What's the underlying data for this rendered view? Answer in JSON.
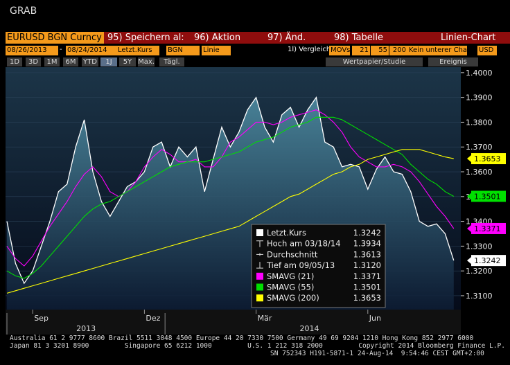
{
  "window": {
    "title": "GRAB"
  },
  "toolbar": {
    "security": "EURUSD BGN Curncy",
    "menu": [
      "95) Speichern al:",
      "96) Aktion",
      "97) Änd.",
      "98) Tabelle"
    ],
    "chart_kind": "Linien-Chart",
    "start_date": "08/26/2013",
    "date_sep": "-",
    "end_date": "08/24/2014",
    "field": "Letzt.Kurs",
    "source": "BGN",
    "style": "Linie",
    "compare": "1l) Vergleich",
    "movs": "MOVs",
    "periods": [
      "21",
      "55",
      "200"
    ],
    "lower": "Kein unterer Cha",
    "currency": "USD",
    "ranges": [
      "1D",
      "3D",
      "1M",
      "6M",
      "YTD",
      "1J",
      "5Y",
      "Max."
    ],
    "frequency": "Tägl.",
    "security_study": "Wertpapier/Studie",
    "events": "Ereignis"
  },
  "chart_data": {
    "type": "line",
    "categories": [
      null,
      null,
      null,
      "Sep",
      null,
      null,
      null,
      null,
      null,
      null,
      null,
      null,
      null,
      null,
      null,
      null,
      "Dez",
      null,
      null,
      null,
      null,
      null,
      null,
      null,
      null,
      null,
      null,
      null,
      null,
      "Mär",
      null,
      null,
      null,
      null,
      null,
      null,
      null,
      null,
      null,
      null,
      null,
      null,
      "Jun",
      null,
      null,
      null,
      null,
      null,
      null,
      null,
      null,
      null,
      null
    ],
    "x_groups": [
      "2013",
      "2014"
    ],
    "series": [
      {
        "name": "Letzt.Kurs",
        "color": "#ffffff",
        "values": [
          1.34,
          1.323,
          1.315,
          1.32,
          1.33,
          1.34,
          1.352,
          1.355,
          1.37,
          1.381,
          1.36,
          1.348,
          1.342,
          1.348,
          1.354,
          1.356,
          1.36,
          1.37,
          1.372,
          1.362,
          1.37,
          1.366,
          1.37,
          1.352,
          1.365,
          1.378,
          1.37,
          1.376,
          1.385,
          1.39,
          1.378,
          1.372,
          1.383,
          1.386,
          1.378,
          1.385,
          1.39,
          1.372,
          1.37,
          1.362,
          1.363,
          1.362,
          1.353,
          1.361,
          1.366,
          1.36,
          1.359,
          1.352,
          1.34,
          1.338,
          1.339,
          1.335,
          1.3242
        ]
      },
      {
        "name": "SMAVG (21)",
        "color": "#ff00ff",
        "values": [
          1.33,
          1.325,
          1.322,
          1.326,
          1.332,
          1.338,
          1.343,
          1.348,
          1.354,
          1.359,
          1.362,
          1.358,
          1.352,
          1.35,
          1.352,
          1.356,
          1.362,
          1.366,
          1.369,
          1.367,
          1.364,
          1.364,
          1.365,
          1.362,
          1.362,
          1.366,
          1.372,
          1.374,
          1.377,
          1.38,
          1.38,
          1.379,
          1.38,
          1.382,
          1.383,
          1.384,
          1.385,
          1.383,
          1.38,
          1.376,
          1.37,
          1.366,
          1.364,
          1.362,
          1.362,
          1.363,
          1.362,
          1.36,
          1.356,
          1.351,
          1.346,
          1.342,
          1.3371
        ]
      },
      {
        "name": "SMAVG (55)",
        "color": "#00e000",
        "values": [
          1.32,
          1.318,
          1.317,
          1.319,
          1.322,
          1.326,
          1.33,
          1.334,
          1.338,
          1.342,
          1.345,
          1.347,
          1.348,
          1.35,
          1.352,
          1.354,
          1.356,
          1.358,
          1.36,
          1.362,
          1.363,
          1.364,
          1.364,
          1.364,
          1.365,
          1.366,
          1.367,
          1.368,
          1.37,
          1.372,
          1.373,
          1.374,
          1.376,
          1.378,
          1.379,
          1.38,
          1.382,
          1.382,
          1.382,
          1.381,
          1.379,
          1.377,
          1.375,
          1.373,
          1.371,
          1.369,
          1.367,
          1.363,
          1.36,
          1.357,
          1.355,
          1.352,
          1.3501
        ]
      },
      {
        "name": "SMAVG (200)",
        "color": "#ffff00",
        "values": [
          1.311,
          1.312,
          1.313,
          1.314,
          1.315,
          1.316,
          1.317,
          1.318,
          1.319,
          1.32,
          1.321,
          1.322,
          1.323,
          1.324,
          1.325,
          1.326,
          1.327,
          1.328,
          1.329,
          1.33,
          1.331,
          1.332,
          1.333,
          1.334,
          1.335,
          1.336,
          1.337,
          1.338,
          1.34,
          1.342,
          1.344,
          1.346,
          1.348,
          1.35,
          1.351,
          1.353,
          1.355,
          1.357,
          1.359,
          1.36,
          1.362,
          1.363,
          1.365,
          1.366,
          1.367,
          1.368,
          1.369,
          1.369,
          1.369,
          1.368,
          1.367,
          1.366,
          1.3653
        ]
      }
    ],
    "legend_stats": [
      {
        "label": "Hoch am 03/18/14",
        "value": 1.3934
      },
      {
        "label": "Durchschnitt",
        "value": 1.3613
      },
      {
        "label": "Tief am 09/05/13",
        "value": 1.312,
        "value_label": "1.3120"
      }
    ],
    "ylim": [
      1.3044,
      1.4022
    ],
    "yticks": [
      {
        "value": 1.4,
        "label": "1.4000"
      },
      {
        "value": 1.39,
        "label": "1.3900"
      },
      {
        "value": 1.38,
        "label": "1.3800"
      },
      {
        "value": 1.37,
        "label": "1.3700"
      },
      {
        "value": 1.36,
        "label": "1.3600"
      },
      {
        "value": 1.35,
        "label": "1.3500"
      },
      {
        "value": 1.34,
        "label": "1.3400"
      },
      {
        "value": 1.33,
        "label": "1.3300"
      },
      {
        "value": 1.32,
        "label": "1.3200"
      },
      {
        "value": 1.31,
        "label": "1.3100"
      }
    ],
    "grid": true
  },
  "footer": [
    "Australia 61 2 9777 8600 Brazil 5511 3048 4500 Europe 44 20 7330 7500 Germany 49 69 9204 1210 Hong Kong 852 2977 6000",
    "Japan 81 3 3201 8900         Singapore 65 6212 1000         U.S. 1 212 318 2000         Copyright 2014 Bloomberg Finance L.P.",
    "SN 752343 H191-5871-1 24-Aug-14  9:54:46 CEST GMT+2:00"
  ]
}
